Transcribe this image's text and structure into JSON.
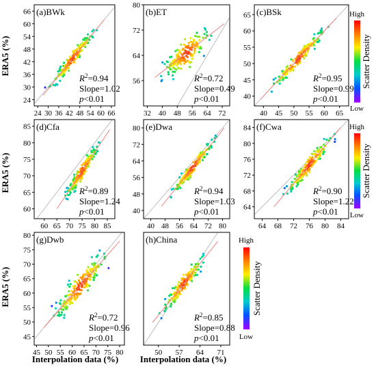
{
  "figure": {
    "y_axis_label": "ERA5 (%)",
    "x_axis_label": "Interpolation data (%)",
    "colorbar": {
      "title": "Scatter Density",
      "high_label": "High",
      "low_label": "Low"
    }
  },
  "chart_data": [
    {
      "type": "scatter",
      "panel_label": "(a)BWk",
      "x_ticks": [
        24,
        30,
        36,
        42,
        48,
        54,
        60,
        66
      ],
      "y_ticks": [
        24,
        30,
        36,
        42,
        48,
        54,
        60,
        66
      ],
      "xlim": [
        22,
        68
      ],
      "ylim": [
        21,
        69
      ],
      "r2": "0.94",
      "slope": "1.02",
      "p": "0.01",
      "fit": {
        "x0": 27,
        "y0": 26,
        "x1": 62,
        "y1": 62
      },
      "cloud": {
        "x_min": 27,
        "x_max": 61,
        "spread": 2.5,
        "n": 160
      }
    },
    {
      "type": "scatter",
      "panel_label": "(b)ET",
      "x_ticks": [
        32,
        40,
        48,
        56,
        64,
        72
      ],
      "y_ticks": [
        56,
        64,
        72,
        80
      ],
      "xlim": [
        30,
        76
      ],
      "ylim": [
        48,
        80
      ],
      "r2": "0.72",
      "slope": "0.49",
      "p": "0.01",
      "fit": {
        "x0": 36,
        "y0": 57,
        "x1": 73,
        "y1": 74
      },
      "cloud": {
        "x_min": 36,
        "x_max": 70,
        "spread": 3.5,
        "n": 170
      }
    },
    {
      "type": "scatter",
      "panel_label": "(c)BSk",
      "x_ticks": [
        40,
        45,
        50,
        55,
        60,
        65
      ],
      "y_ticks": [
        40,
        45,
        50,
        55,
        60,
        65
      ],
      "xlim": [
        37,
        68
      ],
      "ylim": [
        37,
        68
      ],
      "r2": "0.95",
      "slope": "0.99",
      "p": "0.01",
      "fit": {
        "x0": 39,
        "y0": 39,
        "x1": 64,
        "y1": 64
      },
      "cloud": {
        "x_min": 39,
        "x_max": 64,
        "spread": 1.6,
        "n": 160
      }
    },
    {
      "type": "scatter",
      "panel_label": "(d)Cfa",
      "x_ticks": [
        60,
        65,
        70,
        75,
        80,
        85
      ],
      "y_ticks": [
        60,
        65,
        70,
        75,
        80,
        85
      ],
      "xlim": [
        56,
        88
      ],
      "ylim": [
        57,
        87
      ],
      "r2": "0.89",
      "slope": "1.24",
      "p": "0.01",
      "fit": {
        "x0": 65,
        "y0": 60,
        "x1": 86,
        "y1": 84
      },
      "cloud": {
        "x_min": 66,
        "x_max": 84,
        "spread": 1.8,
        "n": 170
      }
    },
    {
      "type": "scatter",
      "panel_label": "(e)Dwa",
      "x_ticks": [
        40,
        48,
        56,
        64,
        72,
        80
      ],
      "y_ticks": [
        40,
        48,
        56,
        64,
        72,
        80
      ],
      "xlim": [
        36,
        84
      ],
      "ylim": [
        36,
        84
      ],
      "r2": "0.94",
      "slope": "1.03",
      "p": "0.01",
      "fit": {
        "x0": 46,
        "y0": 42,
        "x1": 81,
        "y1": 80
      },
      "cloud": {
        "x_min": 47,
        "x_max": 80,
        "spread": 2.4,
        "n": 170
      }
    },
    {
      "type": "scatter",
      "panel_label": "(f)Cwa",
      "x_ticks": [
        64,
        68,
        72,
        76,
        80,
        84
      ],
      "y_ticks": [
        64,
        68,
        72,
        76,
        80,
        84
      ],
      "xlim": [
        62,
        86
      ],
      "ylim": [
        61,
        86
      ],
      "r2": "0.90",
      "slope": "1.22",
      "p": "0.01",
      "fit": {
        "x0": 67,
        "y0": 64,
        "x1": 84,
        "y1": 84
      },
      "cloud": {
        "x_min": 68,
        "x_max": 84,
        "spread": 1.5,
        "n": 170
      }
    },
    {
      "type": "scatter",
      "panel_label": "(g)Dwb",
      "x_ticks": [
        45,
        50,
        55,
        60,
        65,
        70,
        75,
        80
      ],
      "y_ticks": [
        45,
        50,
        55,
        60,
        65,
        70,
        75,
        80
      ],
      "xlim": [
        44,
        82
      ],
      "ylim": [
        42,
        81
      ],
      "r2": "0.72",
      "slope": "0.96",
      "p": "0.01",
      "fit": {
        "x0": 48,
        "y0": 48,
        "x1": 80,
        "y1": 78
      },
      "cloud": {
        "x_min": 49,
        "x_max": 78,
        "spread": 3.5,
        "n": 180
      }
    },
    {
      "type": "scatter",
      "panel_label": "(h)China",
      "x_ticks": [
        50,
        57,
        64,
        71
      ],
      "y_ticks": [],
      "xlim": [
        45,
        74
      ],
      "ylim": [
        45,
        70
      ],
      "r2": "0.85",
      "slope": "0.88",
      "p": "0.01",
      "fit": {
        "x0": 48,
        "y0": 50,
        "x1": 70,
        "y1": 68
      },
      "cloud": {
        "x_min": 49,
        "x_max": 68,
        "spread": 1.6,
        "n": 160
      }
    }
  ],
  "colors": {
    "high": "#ff0000",
    "low": "#8b00ff",
    "fit_line": "#f08080",
    "one_to_one": "#b0b0b0"
  }
}
